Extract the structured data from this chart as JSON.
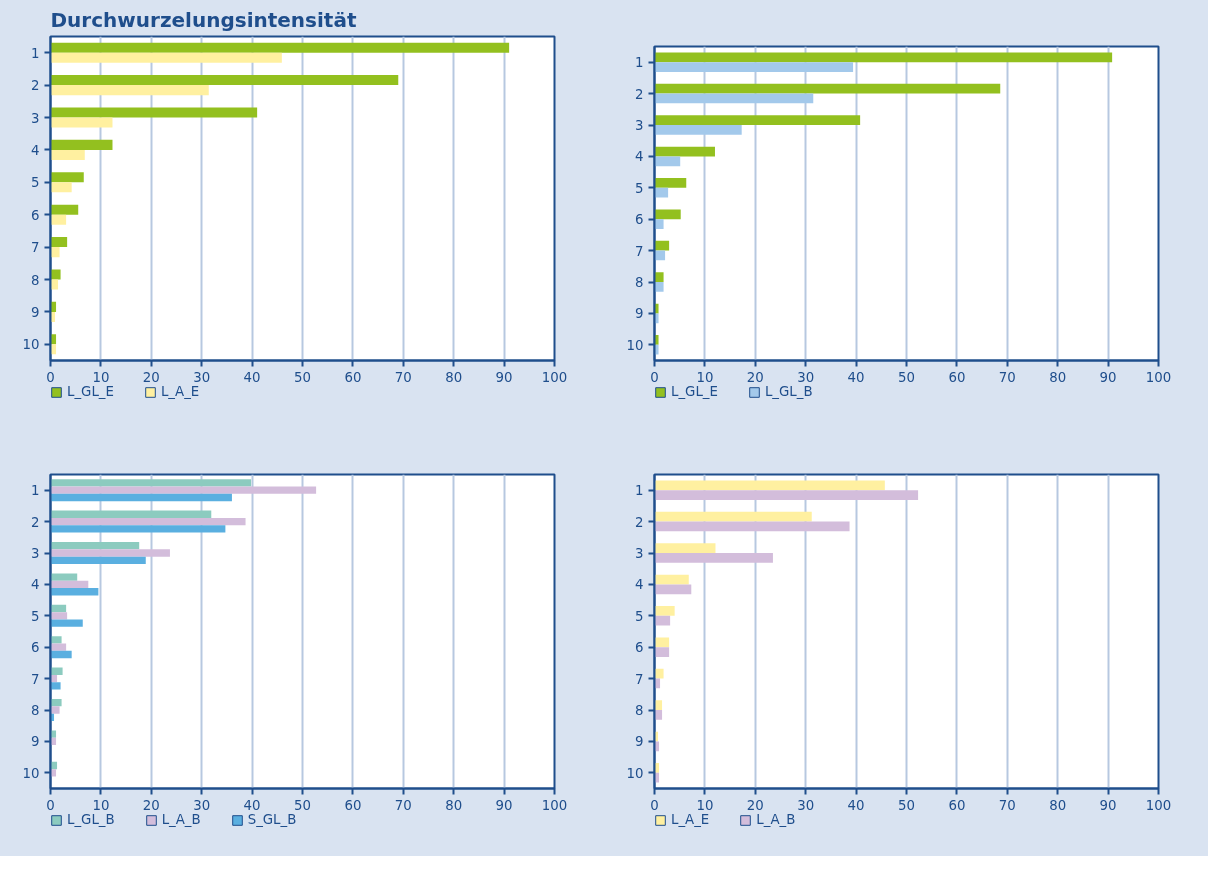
{
  "chart_data": [
    {
      "type": "bar",
      "orientation": "horizontal",
      "title": "Durchwurzelungsintensität",
      "categories": [
        "1",
        "2",
        "3",
        "4",
        "5",
        "6",
        "7",
        "8",
        "9",
        "10"
      ],
      "xlim": [
        0,
        100
      ],
      "xticks": [
        0,
        10,
        20,
        30,
        40,
        50,
        60,
        70,
        80,
        90,
        100
      ],
      "grid": "x",
      "legend": "bottom",
      "series": [
        {
          "name": "L_GL_E",
          "color": "#93c01f",
          "values": [
            91.0,
            69.0,
            41.0,
            12.3,
            6.6,
            5.5,
            3.3,
            2.0,
            1.1,
            1.1
          ]
        },
        {
          "name": "L_A_E",
          "color": "#fff0a0",
          "values": [
            45.9,
            31.4,
            12.3,
            6.8,
            4.2,
            3.1,
            1.8,
            1.5,
            0.9,
            1.1
          ]
        }
      ]
    },
    {
      "type": "bar",
      "orientation": "horizontal",
      "categories": [
        "1",
        "2",
        "3",
        "4",
        "5",
        "6",
        "7",
        "8",
        "9",
        "10"
      ],
      "xlim": [
        0,
        100
      ],
      "xticks": [
        0,
        10,
        20,
        30,
        40,
        50,
        60,
        70,
        80,
        90,
        100
      ],
      "grid": "x",
      "legend": "bottom",
      "series": [
        {
          "name": "L_GL_E",
          "color": "#93c01f",
          "values": [
            90.8,
            68.6,
            40.8,
            12.0,
            6.3,
            5.2,
            2.9,
            1.8,
            0.8,
            0.8
          ]
        },
        {
          "name": "L_GL_B",
          "color": "#a3c9eb",
          "values": [
            39.4,
            31.5,
            17.3,
            5.1,
            2.7,
            1.8,
            2.1,
            1.8,
            0.8,
            0.8
          ]
        }
      ]
    },
    {
      "type": "bar",
      "orientation": "horizontal",
      "categories": [
        "1",
        "2",
        "3",
        "4",
        "5",
        "6",
        "7",
        "8",
        "9",
        "10"
      ],
      "xlim": [
        0,
        100
      ],
      "xticks": [
        0,
        10,
        20,
        30,
        40,
        50,
        60,
        70,
        80,
        90,
        100
      ],
      "grid": "x",
      "legend": "bottom",
      "series": [
        {
          "name": "L_GL_B",
          "color": "#8ccbbf",
          "values": [
            39.8,
            31.9,
            17.6,
            5.3,
            3.1,
            2.2,
            2.4,
            2.2,
            1.1,
            1.3
          ]
        },
        {
          "name": "L_A_B",
          "color": "#d3bddb",
          "values": [
            52.7,
            38.7,
            23.7,
            7.5,
            3.3,
            3.1,
            1.3,
            1.8,
            1.1,
            1.1
          ]
        },
        {
          "name": "S_GL_B",
          "color": "#5aafe0",
          "values": [
            36.0,
            34.7,
            18.9,
            9.5,
            6.4,
            4.2,
            2.0,
            0.7,
            0,
            0
          ]
        }
      ]
    },
    {
      "type": "bar",
      "orientation": "horizontal",
      "categories": [
        "1",
        "2",
        "3",
        "4",
        "5",
        "6",
        "7",
        "8",
        "9",
        "10"
      ],
      "xlim": [
        0,
        100
      ],
      "xticks": [
        0,
        10,
        20,
        30,
        40,
        50,
        60,
        70,
        80,
        90,
        100
      ],
      "grid": "x",
      "legend": "bottom",
      "series": [
        {
          "name": "L_A_E",
          "color": "#fff0a0",
          "values": [
            45.7,
            31.2,
            12.1,
            6.8,
            4.0,
            2.9,
            1.8,
            1.5,
            0.7,
            0.9
          ]
        },
        {
          "name": "L_A_B",
          "color": "#d3bddb",
          "values": [
            52.3,
            38.7,
            23.5,
            7.3,
            3.1,
            2.9,
            1.1,
            1.5,
            0.9,
            0.9
          ]
        }
      ]
    }
  ]
}
